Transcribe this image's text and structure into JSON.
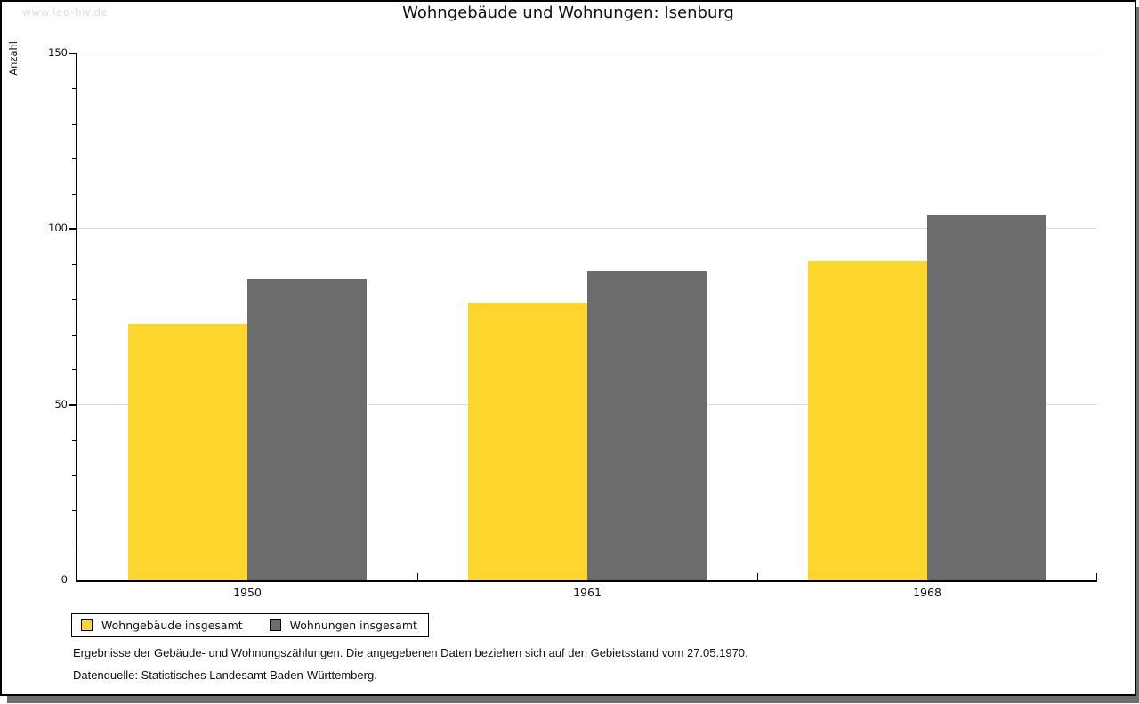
{
  "page": {
    "watermark": "www.leo-bw.de"
  },
  "chart_data": {
    "type": "bar",
    "title": "Wohngebäude und Wohnungen: Isenburg",
    "xlabel": "",
    "ylabel": "Anzahl",
    "categories": [
      "1950",
      "1961",
      "1968"
    ],
    "series": [
      {
        "name": "Wohngebäude insgesamt",
        "color": "#fcd52d",
        "values": [
          73,
          79,
          91
        ]
      },
      {
        "name": "Wohnungen insgesamt",
        "color": "#6c6c6c",
        "values": [
          86,
          88,
          104
        ]
      }
    ],
    "ylim": [
      0,
      150
    ],
    "y_major_step": 50,
    "y_minor_step": 10,
    "grid": "horizontal-major-only",
    "legend_position": "bottom-left"
  },
  "colors": {
    "grid": "#dcdcdc",
    "axis": "#000000",
    "shadow": "#6e6e6e",
    "watermark": "#dfdfdf"
  },
  "footer": {
    "line1": "Ergebnisse der Gebäude- und Wohnungszählungen. Die angegebenen Daten beziehen sich auf den Gebietsstand vom 27.05.1970.",
    "line2": "Datenquelle: Statistisches Landesamt Baden-Württemberg."
  }
}
